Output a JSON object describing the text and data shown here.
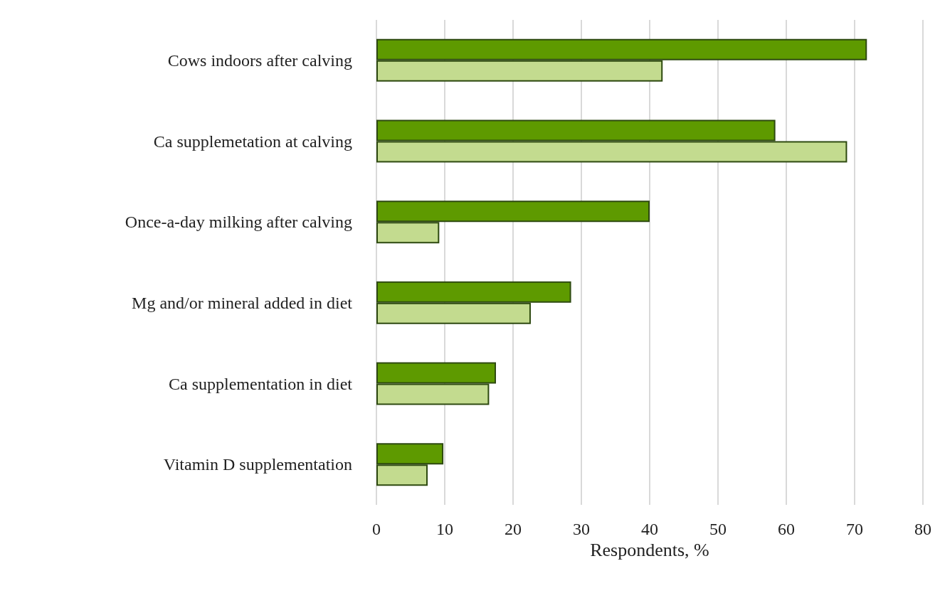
{
  "chart_data": {
    "type": "bar",
    "orientation": "horizontal",
    "xlabel": "Respondents, %",
    "categories": [
      "Cows indoors after calving",
      "Ca supplemetation at calving",
      "Once-a-day milking after calving",
      "Mg and/or mineral added in diet",
      "Ca supplementation in diet",
      "Vitamin D supplementation"
    ],
    "series": [
      {
        "color": "#5e9a00",
        "values": [
          71.8,
          58.4,
          40,
          28.5,
          17.5,
          9.8
        ]
      },
      {
        "color": "#c3db8f",
        "values": [
          41.9,
          68.9,
          9.2,
          22.6,
          16.5,
          7.5
        ]
      }
    ],
    "xlim": [
      0,
      80
    ],
    "xticks": [
      0,
      10,
      20,
      30,
      40,
      50,
      60,
      70,
      80
    ],
    "grid": "x"
  }
}
